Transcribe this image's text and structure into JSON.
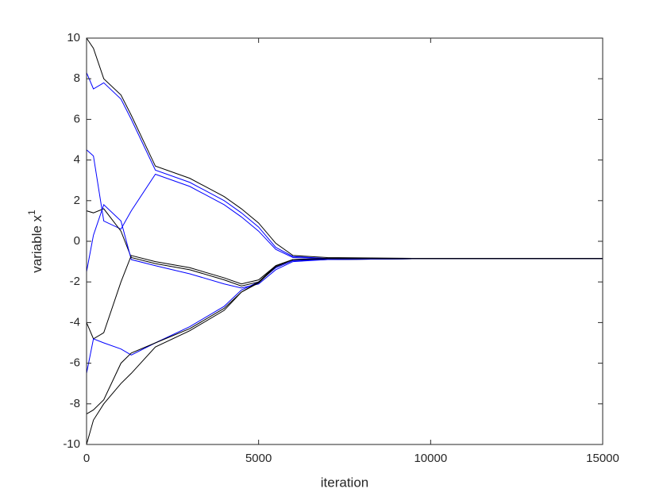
{
  "chart_data": {
    "type": "line",
    "xlabel": "iteration",
    "ylabel": "variable x",
    "ylabel_superscript": "1",
    "x": [
      0,
      200,
      500,
      1000,
      1300,
      2000,
      3000,
      4000,
      4500,
      5000,
      5500,
      6000,
      7000,
      10000,
      15000
    ],
    "series": [
      {
        "color": "#000000",
        "values": [
          10,
          9.5,
          8,
          7.2,
          6.2,
          3.7,
          3.1,
          2.2,
          1.6,
          0.9,
          -0.1,
          -0.7,
          -0.8,
          -0.85,
          -0.85
        ]
      },
      {
        "color": "#0000ff",
        "values": [
          8.3,
          7.5,
          7.8,
          7.0,
          6.0,
          3.5,
          2.9,
          2.0,
          1.4,
          0.7,
          -0.3,
          -0.75,
          -0.85,
          -0.85,
          -0.85
        ]
      },
      {
        "color": "#0000ff",
        "values": [
          4.5,
          4.2,
          1.0,
          0.6,
          1.5,
          3.3,
          2.7,
          1.8,
          1.2,
          0.5,
          -0.4,
          -0.8,
          -0.85,
          -0.85,
          -0.85
        ]
      },
      {
        "color": "#000000",
        "values": [
          1.5,
          1.4,
          1.6,
          0.5,
          -0.8,
          -1.1,
          -1.4,
          -1.9,
          -2.2,
          -2.0,
          -1.3,
          -0.95,
          -0.9,
          -0.85,
          -0.85
        ]
      },
      {
        "color": "#0000ff",
        "values": [
          -1.5,
          0.3,
          1.8,
          1.0,
          -0.9,
          -1.2,
          -1.6,
          -2.1,
          -2.3,
          -2.1,
          -1.4,
          -1.0,
          -0.9,
          -0.85,
          -0.85
        ]
      },
      {
        "color": "#000000",
        "values": [
          -4,
          -4.8,
          -4.5,
          -2.0,
          -0.7,
          -1.0,
          -1.3,
          -1.8,
          -2.1,
          -1.9,
          -1.2,
          -0.9,
          -0.9,
          -0.85,
          -0.85
        ]
      },
      {
        "color": "#0000ff",
        "values": [
          -6.5,
          -4.8,
          -5.0,
          -5.3,
          -5.6,
          -5.0,
          -4.2,
          -3.2,
          -2.4,
          -2.0,
          -1.3,
          -0.95,
          -0.9,
          -0.85,
          -0.85
        ]
      },
      {
        "color": "#000000",
        "values": [
          -8.5,
          -8.3,
          -7.8,
          -6.0,
          -5.5,
          -5.0,
          -4.3,
          -3.3,
          -2.5,
          -2.0,
          -1.2,
          -0.9,
          -0.85,
          -0.85,
          -0.85
        ]
      },
      {
        "color": "#000000",
        "values": [
          -10,
          -8.8,
          -8.0,
          -7.0,
          -6.5,
          -5.2,
          -4.4,
          -3.4,
          -2.5,
          -2.05,
          -1.25,
          -0.9,
          -0.85,
          -0.85,
          -0.85
        ]
      }
    ],
    "xlim": [
      0,
      15000
    ],
    "xticks": [
      0,
      5000,
      10000,
      15000
    ],
    "ylim": [
      -10,
      10
    ],
    "yticks": [
      -10,
      -8,
      -6,
      -4,
      -2,
      0,
      2,
      4,
      6,
      8,
      10
    ],
    "grid": false
  }
}
